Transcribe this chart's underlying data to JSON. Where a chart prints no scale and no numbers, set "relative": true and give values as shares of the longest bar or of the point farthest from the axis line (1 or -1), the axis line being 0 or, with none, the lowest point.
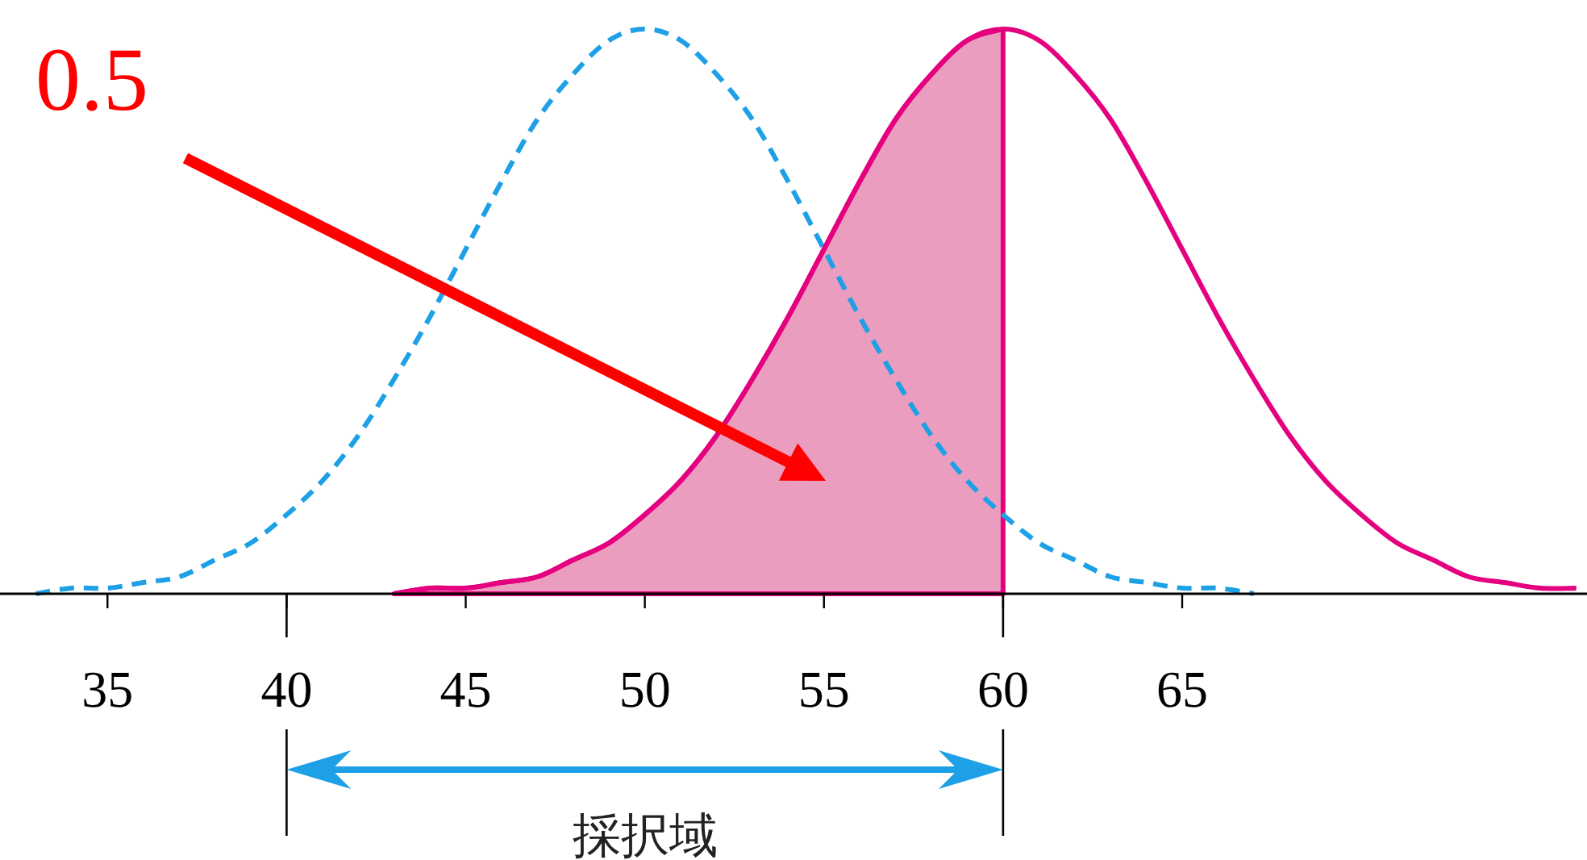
{
  "chart_data": {
    "type": "line",
    "relative": true,
    "xlim": [
      32,
      76.3
    ],
    "xticks": [
      35,
      40,
      45,
      50,
      55,
      60,
      65
    ],
    "grid": false,
    "series": [
      {
        "color": "#1ea0e6",
        "line_style": "dashed",
        "x": [
          33,
          34,
          35,
          36,
          37,
          38,
          39,
          40,
          41,
          42,
          43,
          44,
          45,
          46,
          47,
          48,
          49,
          50,
          51,
          52,
          53,
          54,
          55,
          56,
          57,
          58,
          59,
          60,
          61,
          62,
          63,
          64,
          65,
          66,
          67
        ],
        "values": [
          0,
          0.01,
          0.01,
          0.02,
          0.03,
          0.06,
          0.09,
          0.14,
          0.2,
          0.28,
          0.38,
          0.49,
          0.61,
          0.73,
          0.84,
          0.92,
          0.98,
          1,
          0.98,
          0.92,
          0.84,
          0.73,
          0.61,
          0.49,
          0.38,
          0.28,
          0.2,
          0.14,
          0.09,
          0.06,
          0.03,
          0.02,
          0.01,
          0.01,
          0
        ]
      },
      {
        "color": "#e4007f",
        "line_style": "solid",
        "x": [
          43,
          44,
          45,
          46,
          47,
          48,
          49,
          50,
          51,
          52,
          53,
          54,
          55,
          56,
          57,
          58,
          59,
          60,
          61,
          62,
          63,
          64,
          65,
          66,
          67,
          68,
          69,
          70,
          71,
          72,
          73,
          74,
          75,
          76
        ],
        "values": [
          0,
          0.01,
          0.01,
          0.02,
          0.03,
          0.06,
          0.09,
          0.14,
          0.2,
          0.28,
          0.38,
          0.49,
          0.61,
          0.73,
          0.84,
          0.92,
          0.98,
          1,
          0.98,
          0.92,
          0.84,
          0.73,
          0.61,
          0.49,
          0.38,
          0.28,
          0.2,
          0.14,
          0.09,
          0.06,
          0.03,
          0.02,
          0.01,
          0.01
        ]
      },
      {
        "type": "area",
        "color": "#eb9dc0",
        "x": [
          43,
          44,
          45,
          46,
          47,
          48,
          49,
          50,
          51,
          52,
          53,
          54,
          55,
          56,
          57,
          58,
          59,
          60
        ],
        "values": [
          0,
          0.01,
          0.01,
          0.02,
          0.03,
          0.06,
          0.09,
          0.14,
          0.2,
          0.28,
          0.38,
          0.49,
          0.61,
          0.73,
          0.84,
          0.92,
          0.98,
          1
        ]
      }
    ],
    "annotations": [
      "0.5",
      "採択域"
    ]
  }
}
